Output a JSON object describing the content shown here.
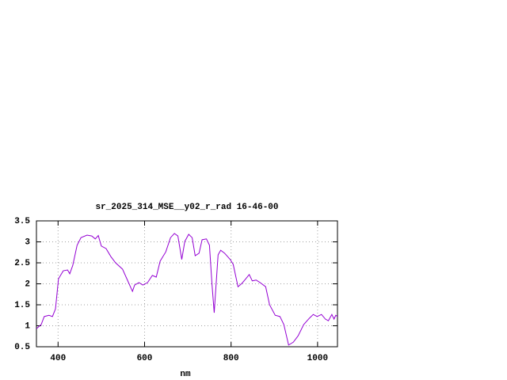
{
  "chart_data": {
    "type": "line",
    "title": "sr_2025_314_MSE__y02_r_rad 16-46-00",
    "x_label": "nm",
    "xlim": [
      350,
      1046
    ],
    "xticks": [
      400,
      600,
      800,
      1000
    ],
    "ylim": [
      0.5,
      3.5
    ],
    "yticks": [
      0.5,
      1,
      1.5,
      2,
      2.5,
      3,
      3.5
    ],
    "grid": true,
    "x": [
      350,
      361,
      368,
      379,
      387,
      394,
      401,
      412,
      422,
      427,
      434,
      444,
      453,
      467,
      478,
      486,
      493,
      500,
      511,
      522,
      533,
      549,
      559,
      572,
      577,
      587,
      596,
      607,
      618,
      627,
      636,
      649,
      660,
      669,
      677,
      686,
      693,
      702,
      710,
      717,
      726,
      733,
      743,
      750,
      756,
      761,
      765,
      770,
      776,
      785,
      798,
      805,
      816,
      825,
      834,
      842,
      849,
      858,
      867,
      880,
      889,
      902,
      913,
      922,
      933,
      944,
      955,
      968,
      981,
      990,
      999,
      1009,
      1018,
      1025,
      1033,
      1038,
      1042,
      1046
    ],
    "series": [
      {
        "color": "#9400d3",
        "values": [
          0.93,
          1.03,
          1.22,
          1.25,
          1.22,
          1.4,
          2.12,
          2.31,
          2.33,
          2.24,
          2.44,
          2.92,
          3.1,
          3.16,
          3.14,
          3.07,
          3.15,
          2.9,
          2.84,
          2.65,
          2.5,
          2.35,
          2.12,
          1.82,
          1.97,
          2.03,
          1.97,
          2.03,
          2.2,
          2.16,
          2.54,
          2.76,
          3.1,
          3.2,
          3.14,
          2.58,
          3.01,
          3.18,
          3.1,
          2.67,
          2.73,
          3.05,
          3.07,
          2.92,
          1.97,
          1.31,
          1.93,
          2.69,
          2.8,
          2.73,
          2.58,
          2.46,
          1.93,
          2.01,
          2.12,
          2.22,
          2.07,
          2.09,
          2.03,
          1.93,
          1.5,
          1.25,
          1.22,
          1.03,
          0.54,
          0.61,
          0.76,
          1.03,
          1.18,
          1.27,
          1.22,
          1.27,
          1.16,
          1.12,
          1.27,
          1.16,
          1.25,
          1.22
        ]
      }
    ]
  }
}
